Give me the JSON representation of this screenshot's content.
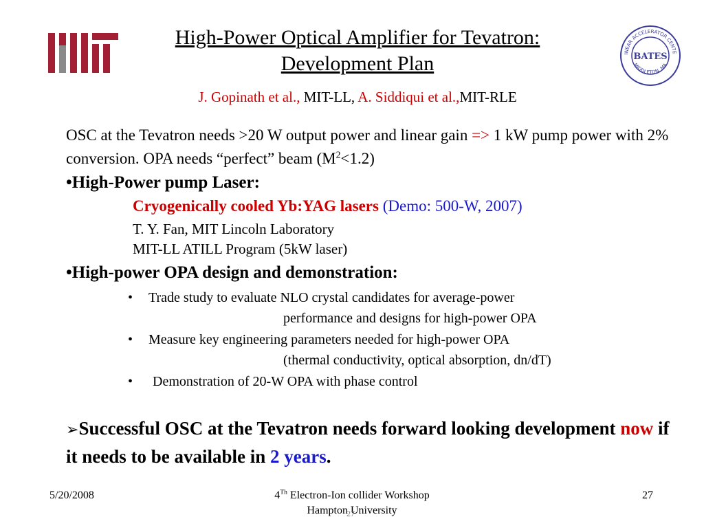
{
  "logos": {
    "mit": "MIT",
    "bates": {
      "ring_text": "LINEAR ACCELERATOR CENTER",
      "bottom_text": "MIDDLETON, MA",
      "center_text": "BATES"
    }
  },
  "title": {
    "line1": "High-Power Optical Amplifier for Tevatron:",
    "line2": "Development  Plan"
  },
  "authors": {
    "a1": "J. Gopinath et al.,",
    "a1_org": "MIT-LL,",
    "a2": "A. Siddiqui et al.,",
    "a2_org": "MIT-RLE"
  },
  "body": {
    "para1_part1": "OSC at the Tevatron needs >20 W output power and linear gain",
    "arrow": "=>",
    "para1_part2": "1 kW pump power with 2% conversion. OPA needs “perfect” beam (M",
    "sup": "2",
    "para1_part3": "<1.2)",
    "bullet1": "•High-Power pump Laser:",
    "cryo_red": "Cryogenically cooled Yb:YAG lasers",
    "cryo_blue": "(Demo: 500-W, 2007)",
    "fan": "T. Y. Fan, MIT Lincoln Laboratory",
    "atill": "MIT-LL  ATILL Program (5kW laser)",
    "bullet2": "•High-power OPA design and demonstration:",
    "dot": "•",
    "sub1": "Trade study to evaluate NLO crystal candidates for average-power",
    "sub1_cont": "performance and designs for high-power OPA",
    "sub2": "Measure key engineering parameters needed for high-power OPA",
    "sub2_cont": "(thermal  conductivity, optical absorption, dn/dT)",
    "sub3": "Demonstration of 20-W OPA with phase control",
    "concl_a": "Successful OSC at the Tevatron needs forward looking development",
    "concl_now": "now",
    "concl_b": "if it needs to be available in",
    "concl_years": "2 years",
    "concl_end": "."
  },
  "footer": {
    "date": "5/20/2008",
    "event_num": "4",
    "event_sup": "Th",
    "event_rest": "Electron-Ion collider Workshop",
    "event_line2": "Hampton University",
    "page": "27",
    "ghost_page": "27"
  },
  "colors": {
    "mit_logo": "#a31f34",
    "bates_seal": "#3b3b9a",
    "red_text": "#cc0000",
    "blue_text": "#1a1acc"
  },
  "icons": {
    "conclusion_marker": "arrow-bullet-icon"
  }
}
